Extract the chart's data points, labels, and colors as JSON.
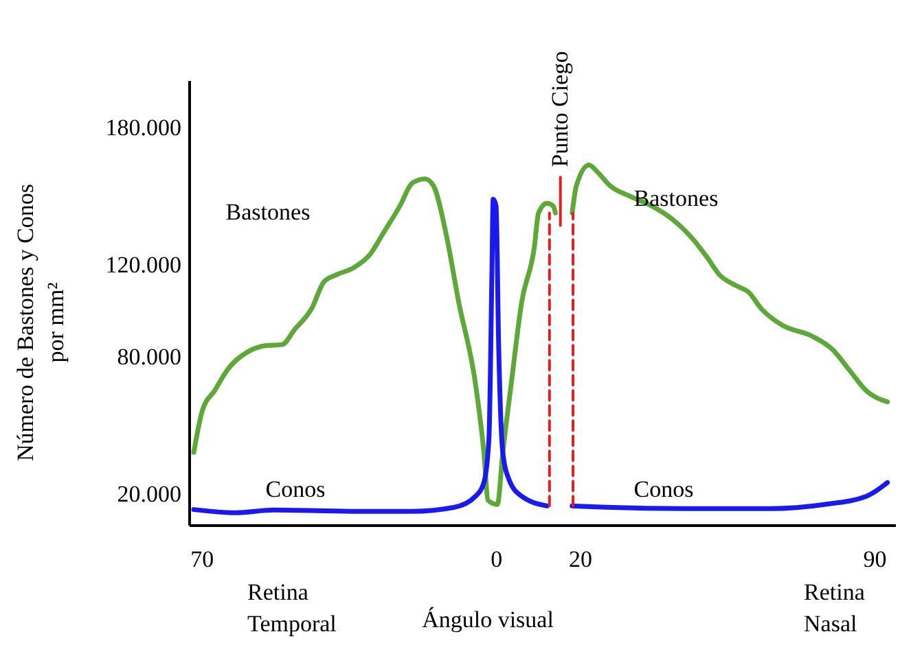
{
  "chart_data": {
    "type": "line",
    "xlabel": "Ángulo visual",
    "ylabel": "Número de Bastones y Conos por mm²",
    "xlim": [
      -73,
      95
    ],
    "ylim": [
      6000,
      200000
    ],
    "xticks": [
      {
        "value": -70,
        "label": "70"
      },
      0,
      20,
      90
    ],
    "yticks": [
      {
        "value": 20000,
        "label": "20.000"
      },
      {
        "value": 80000,
        "label": "80.000"
      },
      {
        "value": 120000,
        "label": "120.000"
      },
      {
        "value": 180000,
        "label": "180.000"
      }
    ],
    "annotations": [
      "Retina Temporal",
      "Retina Nasal",
      {
        "text": "Punto Ciego",
        "x": 15,
        "y": 160000
      }
    ],
    "series": [
      {
        "name": "Bastones",
        "color": "#5ea83a",
        "x": [
          -72,
          -70,
          -67,
          -64,
          -59,
          -55,
          -51,
          -48,
          -44,
          -41,
          -38,
          -34,
          -30,
          -27,
          -23,
          -20,
          -17,
          -15,
          -12,
          -9,
          -5,
          -3,
          -2,
          0.2,
          1.5,
          3.5,
          6,
          9,
          10,
          12,
          13.5,
          14,
          16,
          18,
          19,
          22,
          24,
          27,
          32,
          37,
          42,
          47,
          50,
          53,
          57,
          60,
          63,
          68,
          75,
          80,
          84,
          88,
          93
        ],
        "values": [
          38000,
          56000,
          65000,
          74000,
          82000,
          84500,
          85000,
          91600,
          100600,
          112500,
          115500,
          118500,
          124500,
          133400,
          145400,
          155500,
          157300,
          154300,
          133400,
          103600,
          67800,
          37900,
          17000,
          15200,
          37900,
          67800,
          103600,
          127500,
          142400,
          146600,
          145400,
          142400,
          null,
          142400,
          154300,
          163300,
          160300,
          154300,
          149500,
          145400,
          139400,
          130400,
          123300,
          115500,
          110700,
          107800,
          100600,
          93400,
          88700,
          82700,
          73700,
          64800,
          60000
        ]
      },
      {
        "name": "Conos",
        "color": "#1a1aee",
        "x": [
          -72,
          -62,
          -53,
          -33,
          -20,
          -10,
          -5,
          -3,
          -1.8,
          -1.1,
          -0.8,
          -0.1,
          0.5,
          1.5,
          3,
          6,
          12,
          15,
          18,
          26,
          45,
          65,
          78,
          88,
          93
        ],
        "values": [
          13000,
          11600,
          12800,
          12200,
          12200,
          14000,
          18800,
          24800,
          43900,
          115500,
          148400,
          145400,
          85700,
          37900,
          26000,
          18800,
          14600,
          null,
          14600,
          14000,
          13400,
          13400,
          15200,
          18800,
          24800
        ]
      },
      {
        "color": "#e02020",
        "line_style": "dashed",
        "x": [
          12.6,
          12.6
        ],
        "values": [
          14600,
          142400
        ]
      },
      {
        "color": "#e02020",
        "line_style": "dashed",
        "x": [
          18.2,
          18.2
        ],
        "values": [
          14600,
          142400
        ]
      },
      {
        "color": "#e02020",
        "line_style": "solid",
        "x": [
          15.2,
          15.2
        ],
        "values": [
          137000,
          158000
        ]
      }
    ]
  }
}
